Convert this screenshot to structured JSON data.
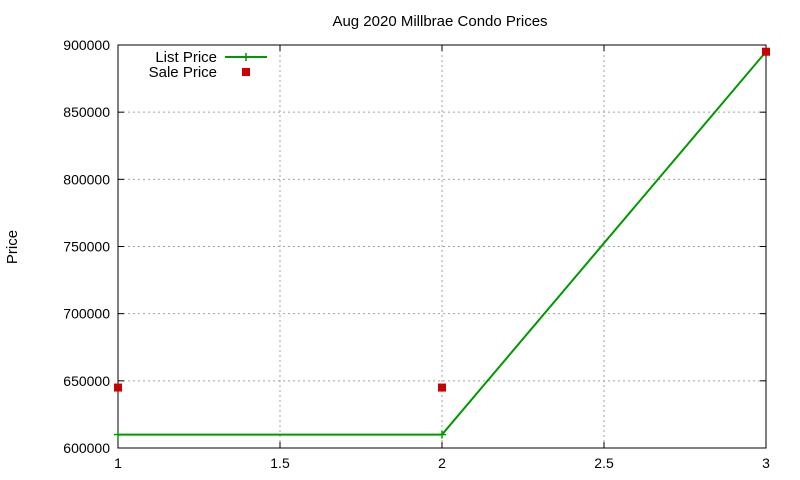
{
  "chart_data": {
    "type": "line",
    "title": "Aug 2020 Millbrae Condo Prices",
    "xlabel": "",
    "ylabel": "Price",
    "xlim": [
      1,
      3
    ],
    "ylim": [
      600000,
      900000
    ],
    "xticks": [
      "1",
      "1.5",
      "2",
      "2.5",
      "3"
    ],
    "yticks": [
      "600000",
      "650000",
      "700000",
      "750000",
      "800000",
      "850000",
      "900000"
    ],
    "grid": true,
    "legend_position": "top-left",
    "series": [
      {
        "name": "List Price",
        "style": "line-with-plus-markers",
        "color": "#009900",
        "x": [
          1,
          2,
          3
        ],
        "y": [
          610000,
          610000,
          895000
        ]
      },
      {
        "name": "Sale Price",
        "style": "square-markers",
        "color": "#cc0000",
        "x": [
          1,
          2,
          3
        ],
        "y": [
          645000,
          645000,
          895000
        ]
      }
    ]
  }
}
